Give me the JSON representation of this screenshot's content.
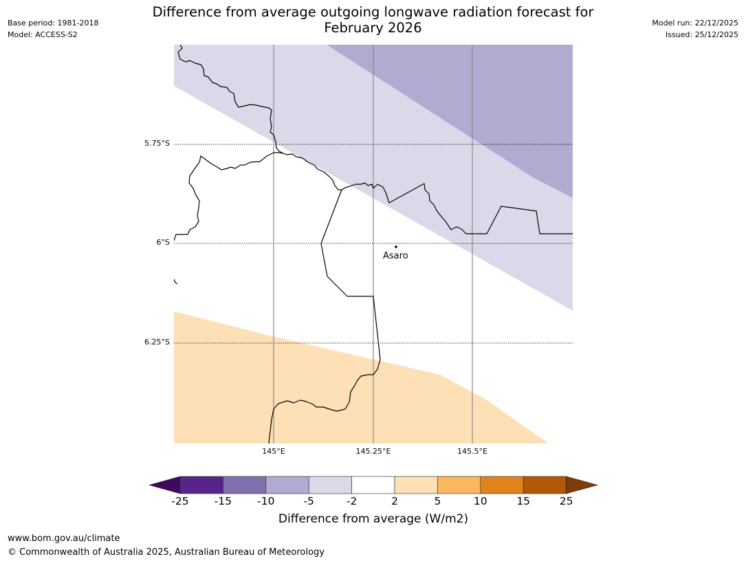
{
  "title_line1": "Difference from average outgoing longwave radiation forecast for",
  "title_line2": "February 2026",
  "meta_left": {
    "base_period": "Base period: 1981-2018",
    "model": "Model: ACCESS-S2"
  },
  "meta_right": {
    "model_run": "Model run: 22/12/2025",
    "issued": "Issued: 25/12/2025"
  },
  "map": {
    "lat_labels": [
      "5.75°S",
      "6°S",
      "6.25°S"
    ],
    "lon_labels": [
      "145°E",
      "145.25°E",
      "145.5°E"
    ],
    "place": "Asaro"
  },
  "colorbar": {
    "title": "Difference from average (W/m2)",
    "ticks": [
      "-25",
      "-15",
      "-10",
      "-5",
      "-2",
      "2",
      "5",
      "10",
      "15",
      "25"
    ],
    "colors": [
      "#3f0a5e",
      "#58248a",
      "#8071ae",
      "#b1aad1",
      "#d9d9ea",
      "#ffffff",
      "#fde0b6",
      "#fbb761",
      "#e2821a",
      "#b35807",
      "#7f3b08"
    ]
  },
  "footer": {
    "url": "www.bom.gov.au/climate",
    "copyright": "© Commonwealth of Australia 2025, Australian Bureau of Meteorology"
  }
}
